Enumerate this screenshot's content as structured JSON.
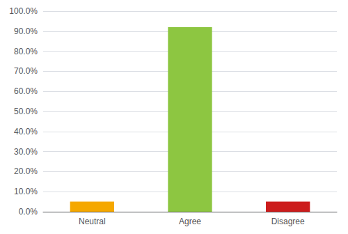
{
  "chart_data": {
    "type": "bar",
    "categories": [
      "Neutral",
      "Agree",
      "Disagree"
    ],
    "values": [
      5.0,
      92.0,
      5.0
    ],
    "colors": [
      "#F5A800",
      "#8DC641",
      "#CC1C1C"
    ],
    "ylim": [
      0,
      100
    ],
    "yticks": [
      {
        "value": 0,
        "label": "0.0%"
      },
      {
        "value": 10,
        "label": "10.0%"
      },
      {
        "value": 20,
        "label": "20.0%"
      },
      {
        "value": 30,
        "label": "30.0%"
      },
      {
        "value": 40,
        "label": "40.0%"
      },
      {
        "value": 50,
        "label": "50.0%"
      },
      {
        "value": 60,
        "label": "60.0%"
      },
      {
        "value": 70,
        "label": "70.0%"
      },
      {
        "value": 80,
        "label": "80.0%"
      },
      {
        "value": 90,
        "label": "90.0%"
      },
      {
        "value": 100,
        "label": "100.0%"
      }
    ],
    "grid": true
  }
}
